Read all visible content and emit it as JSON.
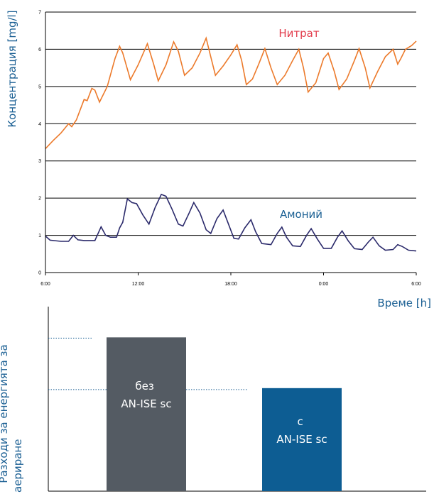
{
  "colors": {
    "nitrate": "#ec7a2b",
    "ammonium": "#2b2a6b",
    "axis_title": "#1a5f93",
    "nitrate_label": "#e23a4a",
    "ammonium_label": "#1a5f93",
    "bar_without": "#545b63",
    "bar_with": "#0d5d93",
    "dotted_ref": "#1a5f93"
  },
  "chart_data": [
    {
      "type": "line",
      "ylabel": "Концентрация [mg/l]",
      "xlabel": "Време [h]",
      "ylim": [
        0,
        7
      ],
      "xlim": [
        0,
        24
      ],
      "yticks": [
        "0",
        "1",
        "2",
        "3",
        "4",
        "5",
        "6",
        "7"
      ],
      "xticks": [
        {
          "x": 0,
          "label": "6:00"
        },
        {
          "x": 6,
          "label": "12:00"
        },
        {
          "x": 12,
          "label": "18:00"
        },
        {
          "x": 18,
          "label": "0:00"
        },
        {
          "x": 24,
          "label": "6:00"
        }
      ],
      "grid": "horizontal",
      "series": [
        {
          "name": "Нитрат",
          "points": [
            [
              0,
              3.33
            ],
            [
              0.5,
              3.55
            ],
            [
              1,
              3.75
            ],
            [
              1.5,
              4.0
            ],
            [
              1.7,
              3.92
            ],
            [
              2,
              4.1
            ],
            [
              2.5,
              4.65
            ],
            [
              2.7,
              4.62
            ],
            [
              3,
              4.95
            ],
            [
              3.2,
              4.9
            ],
            [
              3.5,
              4.58
            ],
            [
              4,
              5.0
            ],
            [
              4.5,
              5.75
            ],
            [
              4.8,
              6.08
            ],
            [
              5,
              5.9
            ],
            [
              5.5,
              5.18
            ],
            [
              6,
              5.58
            ],
            [
              6.6,
              6.15
            ],
            [
              7,
              5.6
            ],
            [
              7.3,
              5.15
            ],
            [
              7.8,
              5.58
            ],
            [
              8.3,
              6.2
            ],
            [
              8.6,
              5.95
            ],
            [
              9,
              5.3
            ],
            [
              9.5,
              5.5
            ],
            [
              10,
              5.9
            ],
            [
              10.4,
              6.3
            ],
            [
              10.7,
              5.8
            ],
            [
              11,
              5.3
            ],
            [
              11.5,
              5.55
            ],
            [
              12,
              5.85
            ],
            [
              12.4,
              6.12
            ],
            [
              12.7,
              5.7
            ],
            [
              13,
              5.05
            ],
            [
              13.4,
              5.2
            ],
            [
              13.8,
              5.6
            ],
            [
              14.2,
              6.02
            ],
            [
              14.6,
              5.5
            ],
            [
              15,
              5.05
            ],
            [
              15.5,
              5.3
            ],
            [
              16,
              5.7
            ],
            [
              16.4,
              6.0
            ],
            [
              16.7,
              5.5
            ],
            [
              17,
              4.85
            ],
            [
              17.5,
              5.1
            ],
            [
              18,
              5.75
            ],
            [
              18.3,
              5.9
            ],
            [
              18.7,
              5.4
            ],
            [
              19,
              4.92
            ],
            [
              19.5,
              5.2
            ],
            [
              20,
              5.7
            ],
            [
              20.3,
              6.02
            ],
            [
              20.7,
              5.5
            ],
            [
              21,
              4.96
            ],
            [
              21.5,
              5.4
            ],
            [
              22,
              5.8
            ],
            [
              22.5,
              6.0
            ],
            [
              22.8,
              5.6
            ],
            [
              23,
              5.75
            ],
            [
              23.3,
              6.0
            ],
            [
              23.7,
              6.1
            ],
            [
              24,
              6.22
            ]
          ]
        },
        {
          "name": "Амоний",
          "points": [
            [
              0,
              0.98
            ],
            [
              0.3,
              0.87
            ],
            [
              1,
              0.84
            ],
            [
              1.5,
              0.84
            ],
            [
              1.8,
              1.0
            ],
            [
              2.1,
              0.88
            ],
            [
              2.5,
              0.86
            ],
            [
              3.2,
              0.86
            ],
            [
              3.6,
              1.23
            ],
            [
              3.9,
              1.0
            ],
            [
              4.2,
              0.95
            ],
            [
              4.6,
              0.95
            ],
            [
              4.8,
              1.2
            ],
            [
              5,
              1.35
            ],
            [
              5.3,
              1.98
            ],
            [
              5.6,
              1.88
            ],
            [
              5.9,
              1.85
            ],
            [
              6.3,
              1.55
            ],
            [
              6.7,
              1.3
            ],
            [
              7.1,
              1.75
            ],
            [
              7.5,
              2.1
            ],
            [
              7.8,
              2.05
            ],
            [
              8.2,
              1.7
            ],
            [
              8.6,
              1.3
            ],
            [
              8.9,
              1.25
            ],
            [
              9.3,
              1.6
            ],
            [
              9.6,
              1.88
            ],
            [
              10,
              1.6
            ],
            [
              10.4,
              1.15
            ],
            [
              10.7,
              1.05
            ],
            [
              11.1,
              1.45
            ],
            [
              11.5,
              1.68
            ],
            [
              11.8,
              1.35
            ],
            [
              12.2,
              0.92
            ],
            [
              12.5,
              0.9
            ],
            [
              12.9,
              1.2
            ],
            [
              13.3,
              1.42
            ],
            [
              13.6,
              1.1
            ],
            [
              14,
              0.78
            ],
            [
              14.6,
              0.75
            ],
            [
              15,
              1.05
            ],
            [
              15.3,
              1.22
            ],
            [
              15.6,
              0.95
            ],
            [
              16,
              0.72
            ],
            [
              16.5,
              0.7
            ],
            [
              16.9,
              1.0
            ],
            [
              17.2,
              1.18
            ],
            [
              17.6,
              0.9
            ],
            [
              18,
              0.65
            ],
            [
              18.5,
              0.65
            ],
            [
              18.9,
              0.95
            ],
            [
              19.2,
              1.12
            ],
            [
              19.6,
              0.85
            ],
            [
              20,
              0.64
            ],
            [
              20.5,
              0.62
            ],
            [
              20.9,
              0.82
            ],
            [
              21.2,
              0.95
            ],
            [
              21.6,
              0.72
            ],
            [
              22,
              0.6
            ],
            [
              22.5,
              0.62
            ],
            [
              22.8,
              0.75
            ],
            [
              23.1,
              0.7
            ],
            [
              23.5,
              0.6
            ],
            [
              24,
              0.58
            ]
          ]
        }
      ]
    },
    {
      "type": "bar",
      "ylabel": "Разходи за енергията за аериране",
      "categories": [
        "без\nAN-ISE sc",
        "с\nAN-ISE sc"
      ],
      "values": [
        100,
        67
      ],
      "ylim": [
        0,
        120
      ]
    }
  ]
}
